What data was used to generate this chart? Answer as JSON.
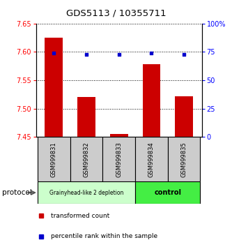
{
  "title": "GDS5113 / 10355711",
  "samples": [
    "GSM999831",
    "GSM999832",
    "GSM999833",
    "GSM999834",
    "GSM999835"
  ],
  "bar_values": [
    7.625,
    7.52,
    7.455,
    7.578,
    7.522
  ],
  "bar_base": 7.45,
  "percentile_values": [
    74,
    73,
    73,
    74,
    73
  ],
  "ylim_left": [
    7.45,
    7.65
  ],
  "ylim_right": [
    0,
    100
  ],
  "yticks_left": [
    7.45,
    7.5,
    7.55,
    7.6,
    7.65
  ],
  "yticks_right": [
    0,
    25,
    50,
    75,
    100
  ],
  "ytick_labels_right": [
    "0",
    "25",
    "50",
    "75",
    "100%"
  ],
  "bar_color": "#cc0000",
  "percentile_color": "#0000cc",
  "group1_samples": [
    0,
    1,
    2
  ],
  "group2_samples": [
    3,
    4
  ],
  "group1_label": "Grainyhead-like 2 depletion",
  "group2_label": "control",
  "group1_bg": "#ccffcc",
  "group2_bg": "#44ee44",
  "protocol_label": "protocol",
  "legend_bar_label": "transformed count",
  "legend_pct_label": "percentile rank within the sample",
  "sample_box_color": "#cccccc",
  "title_fontsize": 9.5,
  "axis_tick_fontsize": 7,
  "bar_width": 0.55,
  "xlim": [
    -0.55,
    4.55
  ]
}
